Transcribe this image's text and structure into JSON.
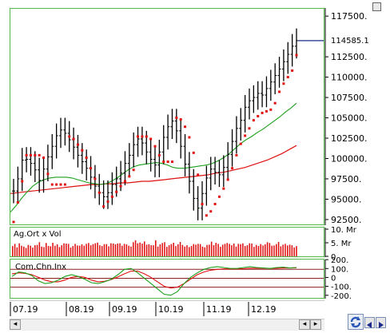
{
  "colors": {
    "pane_border": "#52b84a",
    "price_bars": "#000000",
    "sar": "#e01010",
    "ma_short": "#1aa01a",
    "ma_long": "#e01010",
    "last_price_line": "#1a2a8a",
    "volume": "#e01010",
    "cci_green": "#1aa01a",
    "cci_red": "#e01010",
    "cci_level": "#8b2020"
  },
  "icons": {
    "refresh": "refresh-icon",
    "left": "arrow-left-icon",
    "right": "arrow-right-icon"
  },
  "last_price": "114585.1",
  "volume_panel": {
    "title": "Ag.Ort x Vol",
    "ticks": [
      "10. Mr",
      "5. Mr",
      "0"
    ]
  },
  "indicator_panel": {
    "title": "Com.Chn.Inx",
    "ticks": [
      "200.",
      "100.",
      "0",
      "-100.",
      "-200."
    ]
  },
  "chart_data": {
    "type": "line",
    "price_axis": {
      "ylim": [
        92000,
        118500
      ],
      "ticks": [
        "117500.",
        "112500.",
        "110000.",
        "107500.",
        "105000.",
        "102500.",
        "100000.",
        "97500.",
        "95000.",
        "92500."
      ]
    },
    "x_labels": [
      "07.19",
      "08.19",
      "09.19",
      "10.19",
      "11.19",
      "12.19"
    ],
    "series": [
      {
        "kind": "price",
        "values": [
          96100,
          97600,
          99900,
          100000,
          99500,
          98700,
          97400,
          98800,
          100300,
          101600,
          102900,
          103600,
          103200,
          102400,
          101500,
          100500,
          99700,
          98900,
          97800,
          96700,
          95900,
          95400,
          95900,
          96900,
          97600,
          98300,
          99500,
          100500,
          101800,
          102500,
          102000,
          100900,
          100000,
          99300,
          100900,
          102700,
          104000,
          104700,
          103500,
          101600,
          99400,
          97300,
          95200,
          94000,
          95800,
          97700,
          98800,
          98400,
          98100,
          99000,
          100600,
          102200,
          103800,
          104800,
          106400,
          107200,
          107600,
          108100,
          107900,
          108700,
          109500,
          110300,
          111100,
          112000,
          112900,
          113900,
          114585
        ]
      },
      {
        "kind": "sar",
        "values": [
          92300,
          94700,
          97300,
          100500,
          100500,
          100500,
          100500,
          100200,
          98200,
          96900,
          96900,
          96900,
          96900,
          102800,
          102500,
          101800,
          101100,
          100200,
          98900,
          97600,
          95900,
          94200,
          94800,
          95400,
          96000,
          96700,
          97300,
          97900,
          98700,
          102800,
          102800,
          102800,
          102500,
          101600,
          100500,
          99700,
          99700,
          99700,
          105100,
          104900,
          104000,
          102700,
          100800,
          98100,
          94500,
          93100,
          93600,
          94500,
          95400,
          96400,
          97500,
          98900,
          100500,
          101900,
          102900,
          103800,
          104800,
          105300,
          105700,
          105900,
          106100,
          106900,
          108300,
          109300,
          110100,
          110900,
          112800
        ]
      },
      {
        "kind": "ma_short",
        "values": [
          93500,
          94300,
          95200,
          96000,
          96700,
          97200,
          97500,
          97700,
          97800,
          97800,
          97800,
          97700,
          97500,
          97300,
          97100,
          97000,
          96900,
          97000,
          97300,
          97700,
          98200,
          98700,
          99100,
          99300,
          99400,
          99500,
          99600,
          99500,
          99300,
          99000,
          98900,
          98900,
          99000,
          99100,
          99200,
          99300,
          99500,
          99800,
          100200,
          100700,
          101300,
          101900,
          102400,
          102800,
          103300,
          103700,
          104200,
          104700,
          105200,
          105800,
          106300,
          106900
        ]
      },
      {
        "kind": "ma_long",
        "values": [
          95800,
          95900,
          96000,
          96100,
          96200,
          96300,
          96400,
          96500,
          96600,
          96700,
          96800,
          96900,
          96900,
          97000,
          97000,
          97100,
          97100,
          97200,
          97300,
          97300,
          97400,
          97500,
          97600,
          97700,
          97800,
          97900,
          98000,
          98100,
          98300,
          98400,
          98600,
          98800,
          99000,
          99300,
          99600,
          99900,
          100300,
          100700,
          101200,
          101700
        ]
      }
    ],
    "volume_ylim": [
      0,
      10
    ],
    "volume_values": [
      3.8,
      4.6,
      3.3,
      4.8,
      3.9,
      3.6,
      3.1,
      4.2,
      3.9,
      3.2,
      4.1,
      4.2,
      5.2,
      3.6,
      3.4,
      4.9,
      3.8,
      3.7,
      5.0,
      3.9,
      4.4,
      3.4,
      4.1,
      4.8,
      4.7,
      4.6,
      3.2,
      3.8,
      4.6,
      4.0,
      3.9,
      4.4,
      3.9,
      4.6,
      4.9,
      4.1,
      4.5,
      4.8,
      5.1,
      4.1,
      3.8,
      4.5,
      4.5,
      3.7,
      4.8,
      4.7,
      4.4,
      4.7,
      4.8,
      3.9,
      4.6,
      4.4,
      3.9,
      3.6,
      5.2,
      5.9,
      4.8,
      5.1,
      4.7,
      5.5,
      4.3,
      4.4,
      4.1,
      4.1,
      5.9,
      3.6,
      4.4,
      4.9,
      5.2,
      3.5,
      4.1,
      4.5,
      5.0,
      3.8,
      4.4,
      5.3,
      4.2,
      3.6,
      4.1,
      3.4,
      3.8,
      4.5,
      4.3,
      4.6,
      4.5,
      3.6,
      3.3,
      4.2,
      4.3,
      5.4,
      4.1,
      5.0,
      4.6,
      3.5,
      4.3,
      4.6,
      4.9,
      4.6,
      4.1,
      4.7,
      3.6,
      4.6,
      4.5,
      4.8,
      3.8,
      4.1,
      4.8,
      4.7,
      3.5,
      4.2,
      3.8,
      4.5,
      4.0,
      4.4,
      5.2,
      4.9,
      3.9,
      4.0,
      4.5,
      5.3,
      3.7,
      4.3,
      4.6,
      4.0,
      4.3,
      4.1,
      3.3,
      3.8
    ],
    "indicator_ylim": [
      -220,
      210
    ],
    "indicator_levels": [
      100,
      0,
      -100
    ],
    "cci_green": [
      20,
      70,
      60,
      30,
      -30,
      -60,
      -50,
      -20,
      20,
      40,
      20,
      -10,
      -50,
      -60,
      -40,
      -10,
      40,
      100,
      110,
      60,
      0,
      -60,
      -120,
      -180,
      -190,
      -150,
      -60,
      10,
      60,
      100,
      120,
      130,
      120,
      110,
      110,
      120,
      130,
      120,
      115,
      110,
      120,
      125,
      115,
      120
    ],
    "cci_red": [
      50,
      60,
      55,
      40,
      10,
      -20,
      -40,
      -40,
      -20,
      10,
      20,
      10,
      -20,
      -40,
      -35,
      -15,
      15,
      50,
      80,
      80,
      50,
      10,
      -40,
      -90,
      -110,
      -100,
      -60,
      -10,
      40,
      70,
      90,
      100,
      105,
      105,
      105,
      108,
      112,
      112,
      112,
      110,
      112,
      115,
      115,
      118
    ]
  }
}
